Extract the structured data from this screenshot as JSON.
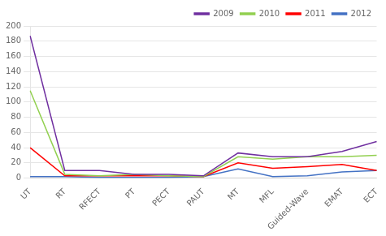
{
  "chart_data": {
    "type": "line",
    "categories": [
      "UT",
      "RT",
      "RFECT",
      "PT",
      "PECT",
      "PAUT",
      "MT",
      "MFL",
      "Guided-Wave",
      "EMAT",
      "ECT"
    ],
    "series": [
      {
        "name": "2009",
        "color": "#7030A0",
        "values": [
          187,
          10,
          10,
          5,
          5,
          3,
          33,
          28,
          28,
          35,
          48
        ]
      },
      {
        "name": "2010",
        "color": "#92D050",
        "values": [
          115,
          5,
          3,
          5,
          3,
          2,
          28,
          25,
          28,
          28,
          30
        ]
      },
      {
        "name": "2011",
        "color": "#FF0000",
        "values": [
          40,
          3,
          3,
          3,
          3,
          2,
          20,
          13,
          15,
          18,
          10
        ]
      },
      {
        "name": "2012",
        "color": "#4472C4",
        "values": [
          2,
          2,
          1,
          1,
          1,
          2,
          12,
          2,
          3,
          8,
          10
        ]
      }
    ],
    "ylim": [
      0,
      200
    ],
    "yticks": [
      0,
      20,
      40,
      60,
      80,
      100,
      120,
      140,
      160,
      180,
      200
    ],
    "grid": "y",
    "legend": "upper right"
  }
}
